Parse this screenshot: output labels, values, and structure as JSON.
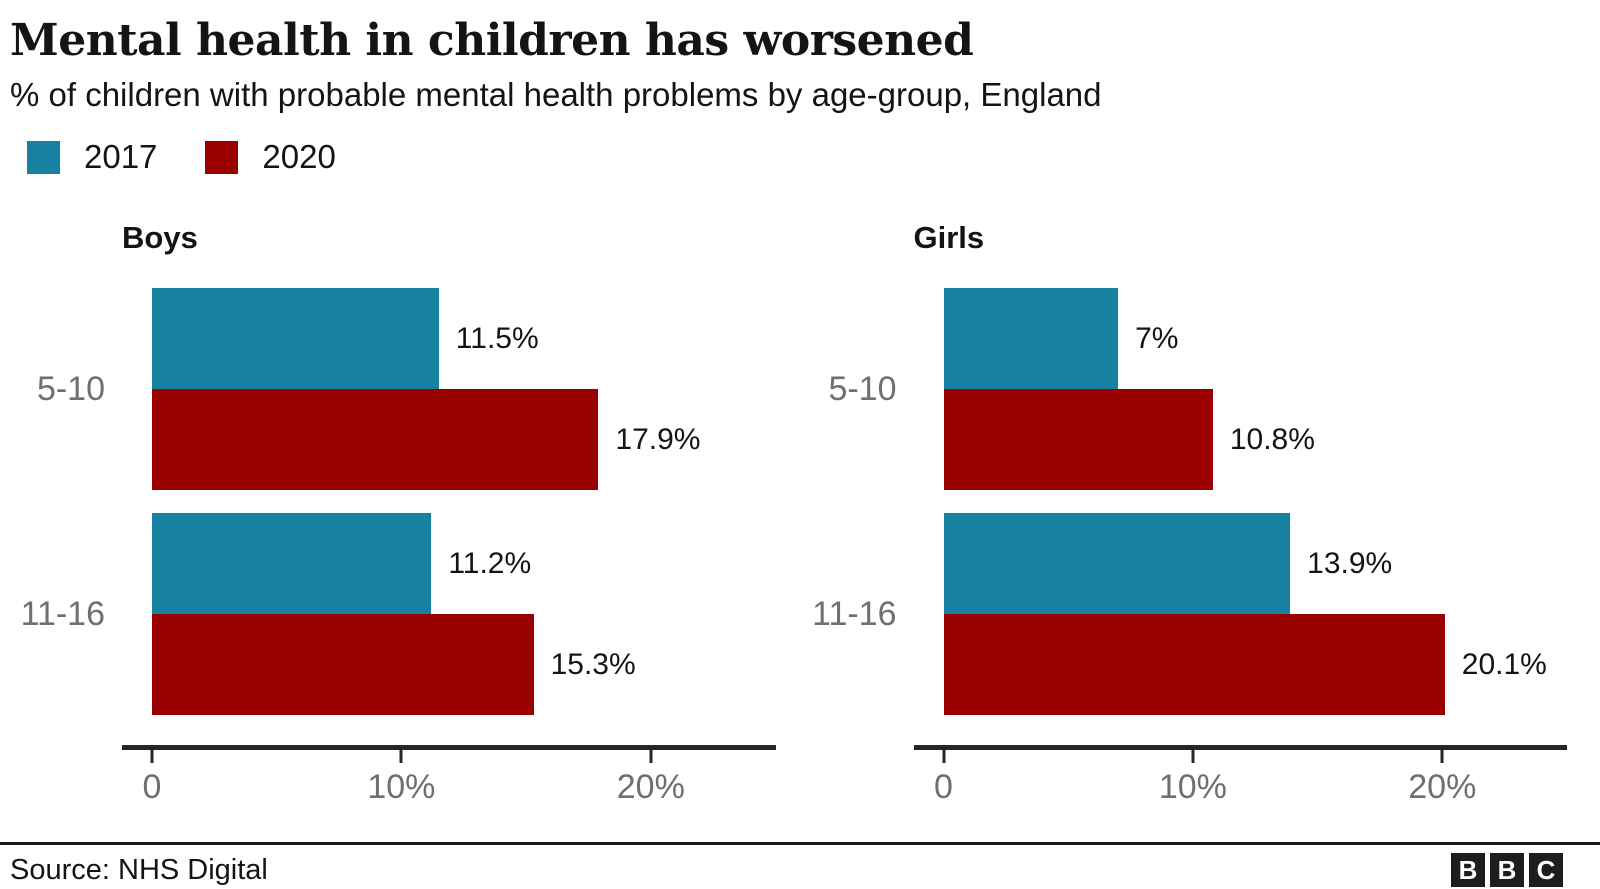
{
  "header": {
    "title": "Mental health in children has worsened",
    "subtitle": "% of children with probable mental health problems by age-group, England"
  },
  "legend": {
    "items": [
      {
        "label": "2017",
        "color": "#1681a1"
      },
      {
        "label": "2020",
        "color": "#9a0000"
      }
    ]
  },
  "chart_data": {
    "type": "bar",
    "orientation": "horizontal",
    "unit": "%",
    "categories": [
      "5-10",
      "11-16"
    ],
    "series_names": [
      "2017",
      "2020"
    ],
    "series_colors": {
      "2017": "#1681a1",
      "2020": "#9a0000"
    },
    "xlim": [
      0,
      25
    ],
    "x_ticks": [
      {
        "value": 0,
        "label": "0"
      },
      {
        "value": 10,
        "label": "10%"
      },
      {
        "value": 20,
        "label": "20%"
      }
    ],
    "panels": [
      {
        "title": "Boys",
        "groups": [
          {
            "category": "5-10",
            "bars": [
              {
                "series": "2017",
                "value": 11.5,
                "label": "11.5%"
              },
              {
                "series": "2020",
                "value": 17.9,
                "label": "17.9%"
              }
            ]
          },
          {
            "category": "11-16",
            "bars": [
              {
                "series": "2017",
                "value": 11.2,
                "label": "11.2%"
              },
              {
                "series": "2020",
                "value": 15.3,
                "label": "15.3%"
              }
            ]
          }
        ]
      },
      {
        "title": "Girls",
        "groups": [
          {
            "category": "5-10",
            "bars": [
              {
                "series": "2017",
                "value": 7,
                "label": "7%"
              },
              {
                "series": "2020",
                "value": 10.8,
                "label": "10.8%"
              }
            ]
          },
          {
            "category": "11-16",
            "bars": [
              {
                "series": "2017",
                "value": 13.9,
                "label": "13.9%"
              },
              {
                "series": "2020",
                "value": 20.1,
                "label": "20.1%"
              }
            ]
          }
        ]
      }
    ]
  },
  "footer": {
    "source": "Source: NHS Digital",
    "logo_letters": [
      "B",
      "B",
      "C"
    ]
  },
  "colors": {
    "text": "#141414",
    "muted": "#6e6e73",
    "axis": "#262626"
  }
}
